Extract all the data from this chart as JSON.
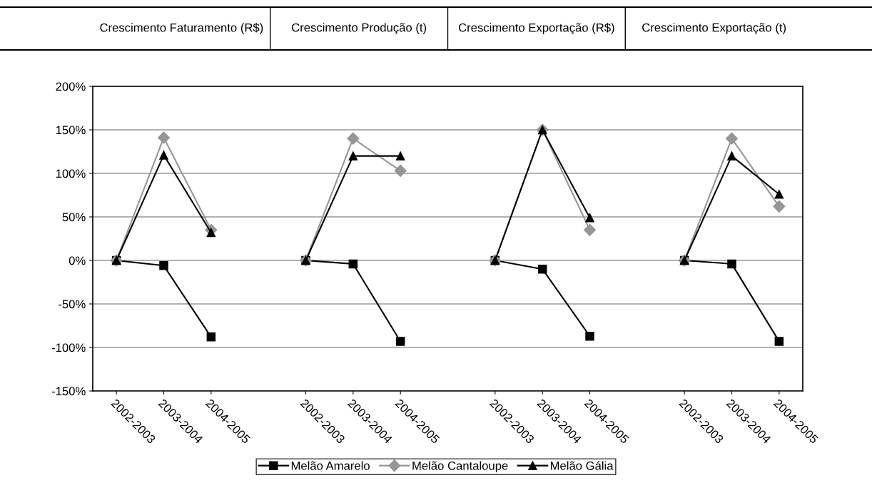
{
  "chart_data": {
    "type": "line",
    "annotations": [
      "Crescimento Faturamento (R$)",
      "Crescimento Produção (t)",
      "Crescimento Exportação (R$)",
      "Crescimento Exportação (t)"
    ],
    "categories": [
      "2002-2003",
      "2003-2004",
      "2004-2005",
      null,
      "2002-2003",
      "2003-2004",
      "2004-2005",
      null,
      "2002-2003",
      "2003-2004",
      "2004-2005",
      null,
      "2002-2003",
      "2003-2004",
      "2004-2005"
    ],
    "series": [
      {
        "name": "Melão Amarelo",
        "color": "#000000",
        "marker": "square",
        "values": [
          0,
          -6,
          -88,
          null,
          0,
          -4,
          -93,
          null,
          0,
          -10,
          -87,
          null,
          0,
          -4,
          -93
        ]
      },
      {
        "name": "Melão Cantaloupe",
        "color": "#969696",
        "marker": "diamond",
        "values": [
          0,
          141,
          35,
          null,
          0,
          140,
          103,
          null,
          0,
          150,
          35,
          null,
          0,
          140,
          62
        ]
      },
      {
        "name": "Melão Gália",
        "color": "#000000",
        "marker": "triangle",
        "values": [
          0,
          121,
          32,
          null,
          0,
          120,
          120,
          null,
          0,
          150,
          49,
          null,
          0,
          120,
          76
        ]
      }
    ],
    "ylim": [
      -150,
      200
    ],
    "yticks": [
      {
        "value": -150,
        "label": "-150%"
      },
      {
        "value": -100,
        "label": "-100%"
      },
      {
        "value": -50,
        "label": "-50%"
      },
      {
        "value": 0,
        "label": "0%"
      },
      {
        "value": 50,
        "label": "50%"
      },
      {
        "value": 100,
        "label": "100%"
      },
      {
        "value": 150,
        "label": "150%"
      },
      {
        "value": 200,
        "label": "200%"
      }
    ],
    "grid": "y",
    "legend": "bottom",
    "line_style": "solid"
  }
}
